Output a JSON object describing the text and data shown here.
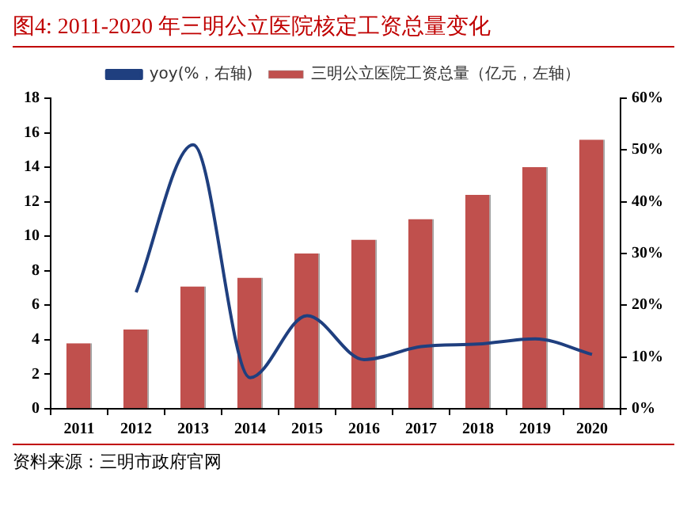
{
  "chart_data": {
    "type": "bar",
    "title": "图4:  2011-2020 年三明公立医院核定工资总量变化",
    "categories": [
      "2011",
      "2012",
      "2013",
      "2014",
      "2015",
      "2016",
      "2017",
      "2018",
      "2019",
      "2020"
    ],
    "series": [
      {
        "name": "三明公立医院工资总量（亿元，左轴）",
        "color": "#c0504d",
        "values": [
          3.8,
          4.6,
          7.1,
          7.6,
          9.0,
          9.8,
          11.0,
          12.4,
          14.0,
          15.6
        ]
      },
      {
        "name": "yoy(%，右轴)",
        "type": "line",
        "axis": "y2",
        "color": "#1f3f7f",
        "values": [
          null,
          22.5,
          51,
          6,
          18,
          9.5,
          12,
          12.5,
          13.5,
          10.5
        ]
      }
    ],
    "ylim": [
      0,
      18
    ],
    "yticks": [
      0,
      2,
      4,
      6,
      8,
      10,
      12,
      14,
      16,
      18
    ],
    "y2lim": [
      0,
      60
    ],
    "y2ticks": [
      {
        "value": 0,
        "label": "0%"
      },
      {
        "value": 10,
        "label": "10%"
      },
      {
        "value": 20,
        "label": "20%"
      },
      {
        "value": 30,
        "label": "30%"
      },
      {
        "value": 40,
        "label": "40%"
      },
      {
        "value": 50,
        "label": "50%"
      },
      {
        "value": 60,
        "label": "60%"
      }
    ],
    "grid": false,
    "legend": "top",
    "marker": "none",
    "annotations": [
      "资料来源：三明市政府官网"
    ]
  }
}
